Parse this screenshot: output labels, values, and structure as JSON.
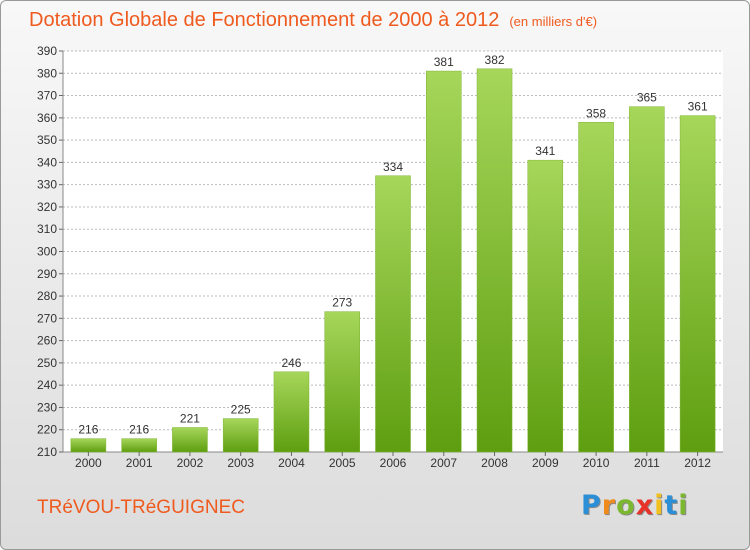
{
  "title": "Dotation Globale de Fonctionnement de 2000 à 2012",
  "subtitle": "(en milliers d'€)",
  "commune": "TRéVOU-TRéGUIGNEC",
  "logo": {
    "text": "Proxiti",
    "letters": [
      {
        "char": "P",
        "color": "#2a8fd6"
      },
      {
        "char": "r",
        "color": "#f08a1c"
      },
      {
        "char": "o",
        "color": "#7cb82f"
      },
      {
        "char": "x",
        "color": "#e8332a"
      },
      {
        "char": "i",
        "color": "#f2c01e"
      },
      {
        "char": "t",
        "color": "#2a8fd6"
      },
      {
        "char": "i",
        "color": "#7cb82f"
      }
    ]
  },
  "colors": {
    "accent": "#ef5a1e",
    "bar_light": "#a6d65a",
    "bar_dark": "#5e9e10",
    "grid": "#bbbbbb"
  },
  "chart_data": {
    "type": "bar",
    "title": "Dotation Globale de Fonctionnement de 2000 à 2012",
    "subtitle": "(en milliers d'€)",
    "categories": [
      "2000",
      "2001",
      "2002",
      "2003",
      "2004",
      "2005",
      "2006",
      "2007",
      "2008",
      "2009",
      "2010",
      "2011",
      "2012"
    ],
    "values": [
      216,
      216,
      221,
      225,
      246,
      273,
      334,
      381,
      382,
      341,
      358,
      365,
      361
    ],
    "ylim": [
      210,
      390
    ],
    "ytick_step": 10,
    "grid": true
  }
}
